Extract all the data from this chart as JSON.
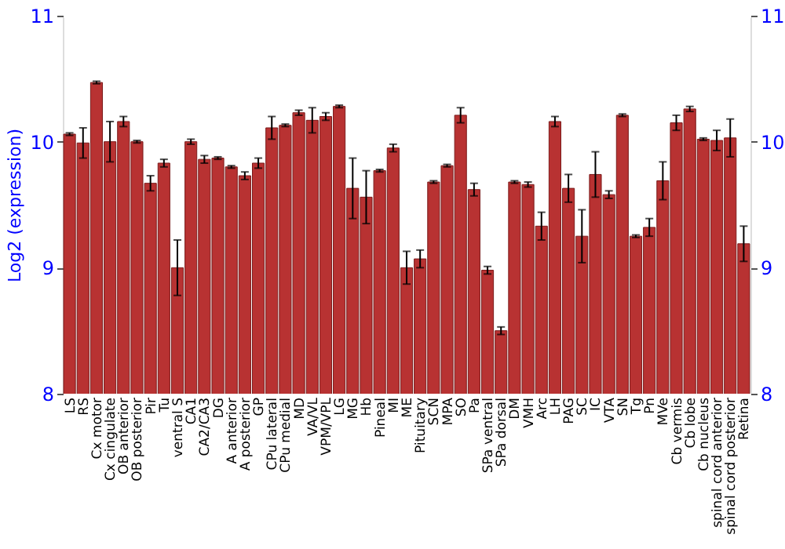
{
  "chart_data": {
    "type": "bar",
    "ylabel": "Log2 (expression)",
    "categories": [
      "LS",
      "RS",
      "Cx motor",
      "Cx cingulate",
      "OB anterior",
      "OB posterior",
      "Pir",
      "Tu",
      "ventral S",
      "CA1",
      "CA2/CA3",
      "DG",
      "A anterior",
      "A posterior",
      "GP",
      "CPu lateral",
      "CPu medial",
      "MD",
      "VA/VL",
      "VPM/VPL",
      "LG",
      "MG",
      "Hb",
      "Pineal",
      "MI",
      "ME",
      "Pituitary",
      "SCN",
      "MPA",
      "SO",
      "Pa",
      "SPa ventral",
      "SPa dorsal",
      "DM",
      "VMH",
      "Arc",
      "LH",
      "PAG",
      "SC",
      "IC",
      "VTA",
      "SN",
      "Tg",
      "Pn",
      "MVe",
      "Cb vermis",
      "Cb lobe",
      "Cb nucleus",
      "spinal cord anterior",
      "spinal cord posterior",
      "Retina"
    ],
    "values": [
      10.06,
      9.99,
      10.47,
      10.0,
      10.16,
      10.0,
      9.67,
      9.83,
      9.0,
      10.0,
      9.86,
      9.87,
      9.8,
      9.73,
      9.83,
      10.11,
      10.13,
      10.23,
      10.17,
      10.2,
      10.28,
      9.63,
      9.56,
      9.77,
      9.95,
      9.0,
      9.07,
      9.68,
      9.81,
      10.21,
      9.62,
      8.98,
      8.5,
      9.68,
      9.66,
      9.33,
      10.16,
      9.63,
      9.25,
      9.74,
      9.58,
      10.21,
      9.25,
      9.32,
      9.69,
      10.15,
      10.26,
      10.02,
      10.01,
      10.03,
      9.19
    ],
    "errors": [
      0.01,
      0.12,
      0.01,
      0.16,
      0.04,
      0.01,
      0.06,
      0.03,
      0.22,
      0.02,
      0.03,
      0.01,
      0.01,
      0.03,
      0.04,
      0.09,
      0.01,
      0.02,
      0.1,
      0.03,
      0.01,
      0.24,
      0.21,
      0.01,
      0.03,
      0.13,
      0.07,
      0.01,
      0.01,
      0.06,
      0.05,
      0.03,
      0.03,
      0.01,
      0.02,
      0.11,
      0.04,
      0.11,
      0.21,
      0.18,
      0.03,
      0.01,
      0.01,
      0.07,
      0.15,
      0.06,
      0.02,
      0.01,
      0.08,
      0.15,
      0.14
    ],
    "color": "#b83232",
    "ylim": [
      8,
      11
    ],
    "yticks": [
      8,
      9,
      10,
      11
    ],
    "y2lim": [
      8,
      11
    ],
    "y2ticks": [
      8,
      9,
      10,
      11
    ],
    "grid": "y"
  }
}
